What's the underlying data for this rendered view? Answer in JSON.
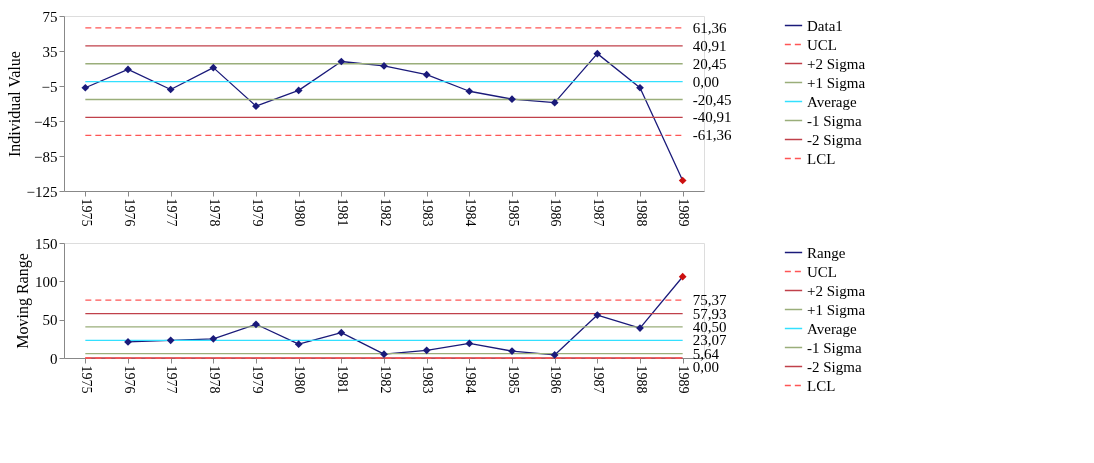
{
  "chart_data": [
    {
      "type": "line",
      "ylabel": "Individual Value",
      "legend": "right",
      "categories": [
        "1975",
        "1976",
        "1977",
        "1978",
        "1979",
        "1980",
        "1981",
        "1982",
        "1983",
        "1984",
        "1985",
        "1986",
        "1987",
        "1988",
        "1989"
      ],
      "ylim": [
        -125,
        75
      ],
      "yticks": [
        -125,
        -85,
        -45,
        -5,
        35,
        75
      ],
      "series": [
        {
          "name": "Data1",
          "color": "#1a1a7a",
          "marker": "diamond",
          "values": [
            -7,
            14,
            -9,
            16,
            -28,
            -10,
            23,
            18,
            8,
            -11,
            -20,
            -24,
            32,
            -7,
            -113
          ],
          "colors": [
            "#1a1a7a",
            "#1a1a7a",
            "#1a1a7a",
            "#1a1a7a",
            "#1a1a7a",
            "#1a1a7a",
            "#1a1a7a",
            "#1a1a7a",
            "#1a1a7a",
            "#1a1a7a",
            "#1a1a7a",
            "#1a1a7a",
            "#1a1a7a",
            "#1a1a7a",
            "#cc1010"
          ]
        },
        {
          "name": "UCL",
          "color": "#ff5555",
          "line_style": "dashed",
          "values": [
            61.36,
            61.36,
            61.36,
            61.36,
            61.36,
            61.36,
            61.36,
            61.36,
            61.36,
            61.36,
            61.36,
            61.36,
            61.36,
            61.36,
            61.36
          ],
          "value_labels": [
            null,
            null,
            null,
            null,
            null,
            null,
            null,
            null,
            null,
            null,
            null,
            null,
            null,
            null,
            "61,36"
          ]
        },
        {
          "name": "+2 Sigma",
          "color": "#c0404a",
          "values": [
            40.91,
            40.91,
            40.91,
            40.91,
            40.91,
            40.91,
            40.91,
            40.91,
            40.91,
            40.91,
            40.91,
            40.91,
            40.91,
            40.91,
            40.91
          ],
          "value_labels": [
            null,
            null,
            null,
            null,
            null,
            null,
            null,
            null,
            null,
            null,
            null,
            null,
            null,
            null,
            "40,91"
          ]
        },
        {
          "name": "+1 Sigma",
          "color": "#9aae7a",
          "values": [
            20.45,
            20.45,
            20.45,
            20.45,
            20.45,
            20.45,
            20.45,
            20.45,
            20.45,
            20.45,
            20.45,
            20.45,
            20.45,
            20.45,
            20.45
          ],
          "value_labels": [
            null,
            null,
            null,
            null,
            null,
            null,
            null,
            null,
            null,
            null,
            null,
            null,
            null,
            null,
            "20,45"
          ]
        },
        {
          "name": "Average",
          "color": "#33e0ff",
          "values": [
            0,
            0,
            0,
            0,
            0,
            0,
            0,
            0,
            0,
            0,
            0,
            0,
            0,
            0,
            0
          ],
          "value_labels": [
            null,
            null,
            null,
            null,
            null,
            null,
            null,
            null,
            null,
            null,
            null,
            null,
            null,
            null,
            "0,00"
          ]
        },
        {
          "name": "-1 Sigma",
          "color": "#9aae7a",
          "values": [
            -20.45,
            -20.45,
            -20.45,
            -20.45,
            -20.45,
            -20.45,
            -20.45,
            -20.45,
            -20.45,
            -20.45,
            -20.45,
            -20.45,
            -20.45,
            -20.45,
            -20.45
          ],
          "value_labels": [
            null,
            null,
            null,
            null,
            null,
            null,
            null,
            null,
            null,
            null,
            null,
            null,
            null,
            null,
            "-20,45"
          ]
        },
        {
          "name": "-2 Sigma",
          "color": "#c0404a",
          "values": [
            -40.91,
            -40.91,
            -40.91,
            -40.91,
            -40.91,
            -40.91,
            -40.91,
            -40.91,
            -40.91,
            -40.91,
            -40.91,
            -40.91,
            -40.91,
            -40.91,
            -40.91
          ],
          "value_labels": [
            null,
            null,
            null,
            null,
            null,
            null,
            null,
            null,
            null,
            null,
            null,
            null,
            null,
            null,
            "-40,91"
          ]
        },
        {
          "name": "LCL",
          "color": "#ff5555",
          "line_style": "dashed",
          "values": [
            -61.36,
            -61.36,
            -61.36,
            -61.36,
            -61.36,
            -61.36,
            -61.36,
            -61.36,
            -61.36,
            -61.36,
            -61.36,
            -61.36,
            -61.36,
            -61.36,
            -61.36
          ],
          "value_labels": [
            null,
            null,
            null,
            null,
            null,
            null,
            null,
            null,
            null,
            null,
            null,
            null,
            null,
            null,
            "-61,36"
          ]
        }
      ]
    },
    {
      "type": "line",
      "ylabel": "Moving Range",
      "legend": "right",
      "categories": [
        "1975",
        "1976",
        "1977",
        "1978",
        "1979",
        "1980",
        "1981",
        "1982",
        "1983",
        "1984",
        "1985",
        "1986",
        "1987",
        "1988",
        "1989"
      ],
      "ylim": [
        0,
        150
      ],
      "yticks": [
        0,
        50,
        100,
        150
      ],
      "series": [
        {
          "name": "Range",
          "color": "#1a1a7a",
          "marker": "diamond",
          "values": [
            null,
            21,
            23,
            25,
            44,
            18,
            33,
            5,
            10,
            19,
            9,
            4,
            56,
            39,
            106
          ],
          "colors": [
            null,
            "#1a1a7a",
            "#1a1a7a",
            "#1a1a7a",
            "#1a1a7a",
            "#1a1a7a",
            "#1a1a7a",
            "#1a1a7a",
            "#1a1a7a",
            "#1a1a7a",
            "#1a1a7a",
            "#1a1a7a",
            "#1a1a7a",
            "#1a1a7a",
            "#cc1010"
          ]
        },
        {
          "name": "UCL",
          "color": "#ff5555",
          "line_style": "dashed",
          "values": [
            75.37,
            75.37,
            75.37,
            75.37,
            75.37,
            75.37,
            75.37,
            75.37,
            75.37,
            75.37,
            75.37,
            75.37,
            75.37,
            75.37,
            75.37
          ],
          "value_labels": [
            null,
            null,
            null,
            null,
            null,
            null,
            null,
            null,
            null,
            null,
            null,
            null,
            null,
            null,
            "75,37"
          ]
        },
        {
          "name": "+2 Sigma",
          "color": "#c0404a",
          "values": [
            57.93,
            57.93,
            57.93,
            57.93,
            57.93,
            57.93,
            57.93,
            57.93,
            57.93,
            57.93,
            57.93,
            57.93,
            57.93,
            57.93,
            57.93
          ],
          "value_labels": [
            null,
            null,
            null,
            null,
            null,
            null,
            null,
            null,
            null,
            null,
            null,
            null,
            null,
            null,
            "57,93"
          ]
        },
        {
          "name": "+1 Sigma",
          "color": "#9aae7a",
          "values": [
            40.5,
            40.5,
            40.5,
            40.5,
            40.5,
            40.5,
            40.5,
            40.5,
            40.5,
            40.5,
            40.5,
            40.5,
            40.5,
            40.5,
            40.5
          ],
          "value_labels": [
            null,
            null,
            null,
            null,
            null,
            null,
            null,
            null,
            null,
            null,
            null,
            null,
            null,
            null,
            "40,50"
          ]
        },
        {
          "name": "Average",
          "color": "#33e0ff",
          "values": [
            23.07,
            23.07,
            23.07,
            23.07,
            23.07,
            23.07,
            23.07,
            23.07,
            23.07,
            23.07,
            23.07,
            23.07,
            23.07,
            23.07,
            23.07
          ],
          "value_labels": [
            null,
            null,
            null,
            null,
            null,
            null,
            null,
            null,
            null,
            null,
            null,
            null,
            null,
            null,
            "23,07"
          ]
        },
        {
          "name": "-1 Sigma",
          "color": "#9aae7a",
          "values": [
            5.64,
            5.64,
            5.64,
            5.64,
            5.64,
            5.64,
            5.64,
            5.64,
            5.64,
            5.64,
            5.64,
            5.64,
            5.64,
            5.64,
            5.64
          ],
          "value_labels": [
            null,
            null,
            null,
            null,
            null,
            null,
            null,
            null,
            null,
            null,
            null,
            null,
            null,
            null,
            "5,64"
          ]
        },
        {
          "name": "-2 Sigma",
          "color": "#c0404a",
          "values": [
            0,
            0,
            0,
            0,
            0,
            0,
            0,
            0,
            0,
            0,
            0,
            0,
            0,
            0,
            0
          ],
          "value_labels": [
            null,
            null,
            null,
            null,
            null,
            null,
            null,
            null,
            null,
            null,
            null,
            null,
            null,
            null,
            "0,00"
          ]
        },
        {
          "name": "LCL",
          "color": "#ff5555",
          "line_style": "dashed",
          "values": [
            0,
            0,
            0,
            0,
            0,
            0,
            0,
            0,
            0,
            0,
            0,
            0,
            0,
            0,
            0
          ]
        }
      ]
    }
  ]
}
